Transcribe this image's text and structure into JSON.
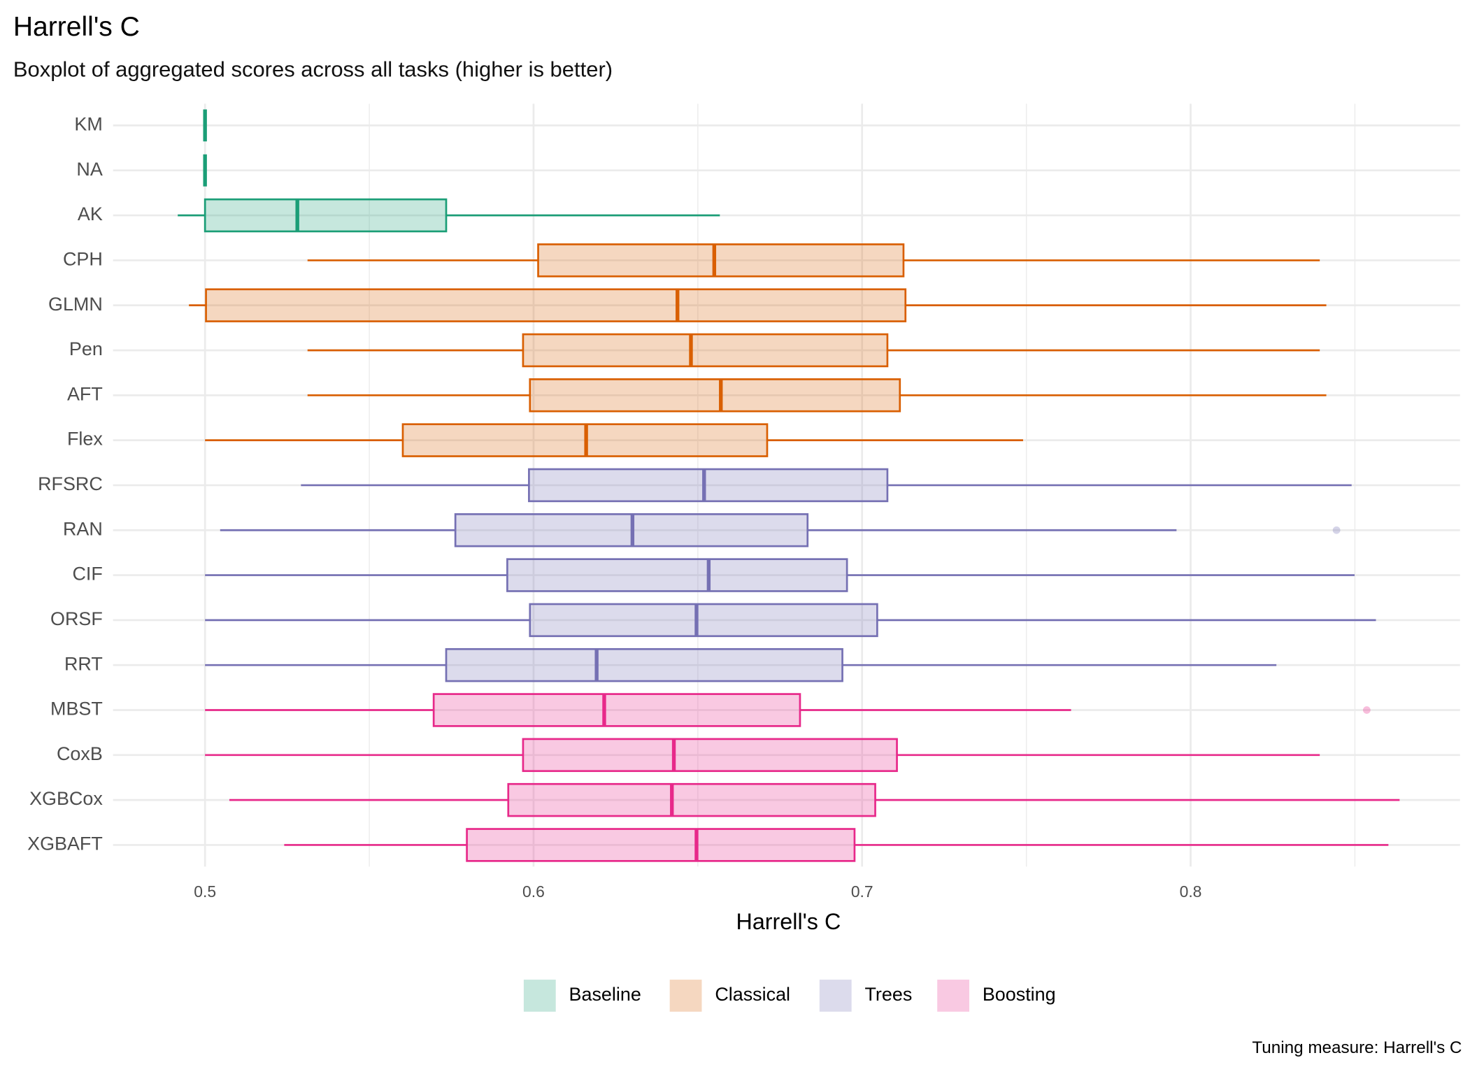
{
  "chart_data": {
    "type": "boxplot",
    "title": "Harrell's C",
    "subtitle": "Boxplot of aggregated scores across all tasks (higher is better)",
    "x_label": "Harrell's C",
    "caption": "Tuning measure: Harrell's C",
    "xlim": [
      0.472,
      0.882
    ],
    "xticks": [
      0.5,
      0.6,
      0.7,
      0.8
    ],
    "xminor": [
      0.55,
      0.65,
      0.75,
      0.85
    ],
    "grid": true,
    "legend": "bottom",
    "series": [
      {
        "name": "Baseline",
        "color": "#1b9e77",
        "categories": [
          "KM",
          "NA",
          "AK"
        ],
        "low": [
          0.5,
          0.5,
          0.4917
        ],
        "q1": [
          0.5,
          0.5,
          0.5
        ],
        "median": [
          0.5,
          0.5,
          0.5281
        ],
        "q3": [
          0.5,
          0.5,
          0.5734
        ],
        "high": [
          0.5,
          0.5,
          0.6567
        ],
        "outliers": [
          [],
          [],
          []
        ]
      },
      {
        "name": "Classical",
        "color": "#d95f02",
        "categories": [
          "CPH",
          "GLMN",
          "Pen",
          "AFT",
          "Flex"
        ],
        "low": [
          0.5312,
          0.4951,
          0.5312,
          0.5312,
          0.5
        ],
        "q1": [
          0.6014,
          0.5003,
          0.5968,
          0.5989,
          0.5602
        ],
        "median": [
          0.655,
          0.6438,
          0.6479,
          0.657,
          0.616
        ],
        "q3": [
          0.7126,
          0.7132,
          0.7077,
          0.7115,
          0.6711
        ],
        "high": [
          0.8393,
          0.8413,
          0.8393,
          0.8413,
          0.749
        ],
        "outliers": [
          [],
          [],
          [],
          [],
          []
        ]
      },
      {
        "name": "Trees",
        "color": "#7570b3",
        "categories": [
          "RFSRC",
          "RAN",
          "CIF",
          "ORSF",
          "RRT"
        ],
        "low": [
          0.5292,
          0.5046,
          0.5,
          0.5,
          0.5
        ],
        "q1": [
          0.5986,
          0.5762,
          0.592,
          0.5989,
          0.5734
        ],
        "median": [
          0.6519,
          0.6301,
          0.6533,
          0.6496,
          0.6192
        ],
        "q3": [
          0.7077,
          0.6834,
          0.6954,
          0.7046,
          0.694
        ],
        "high": [
          0.849,
          0.7957,
          0.8499,
          0.8564,
          0.8261
        ],
        "outliers": [
          [],
          [
            0.8444
          ],
          [],
          [],
          []
        ]
      },
      {
        "name": "Boosting",
        "color": "#e7298a",
        "categories": [
          "MBST",
          "CoxB",
          "XGBCox",
          "XGBAFT"
        ],
        "low": [
          0.5,
          0.5,
          0.5074,
          0.5241
        ],
        "q1": [
          0.5696,
          0.5968,
          0.5923,
          0.5797
        ],
        "median": [
          0.6215,
          0.6427,
          0.6421,
          0.6496
        ],
        "q3": [
          0.6811,
          0.7106,
          0.704,
          0.6977
        ],
        "high": [
          0.7636,
          0.8393,
          0.8636,
          0.8602
        ],
        "outliers": [
          [
            0.8536
          ],
          [],
          [],
          []
        ]
      }
    ]
  }
}
